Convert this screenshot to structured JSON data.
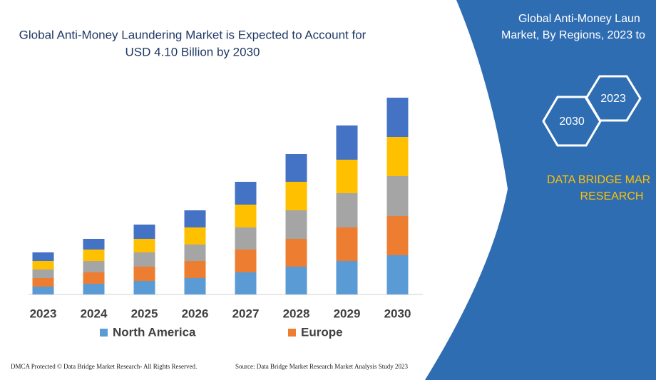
{
  "chart_data": {
    "type": "stacked-bar",
    "title": [
      "Global Anti-Money Laundering Market is Expected to Account for",
      "USD 4.10 Billion by 2030"
    ],
    "categories": [
      "2023",
      "2024",
      "2025",
      "2026",
      "2027",
      "2028",
      "2029",
      "2030"
    ],
    "series": [
      {
        "name": "North America",
        "color": "#5b9bd5",
        "values": [
          11,
          15,
          19,
          23,
          31,
          39,
          47,
          55
        ]
      },
      {
        "name": "Europe",
        "color": "#ed7d31",
        "values": [
          12,
          16,
          20,
          24,
          32,
          39,
          47,
          55
        ]
      },
      {
        "color": "#a5a5a5",
        "values": [
          12,
          16,
          20,
          23,
          31,
          40,
          48,
          56
        ]
      },
      {
        "color": "#ffc000",
        "values": [
          12,
          16,
          19,
          24,
          32,
          40,
          47,
          55
        ]
      },
      {
        "color": "#4472c4",
        "values": [
          12,
          15,
          20,
          24,
          32,
          39,
          48,
          55
        ]
      }
    ]
  },
  "panel": {
    "title": [
      "Global Anti-Money Laun",
      "Market, By Regions, 2023 to"
    ],
    "hexagons": [
      "2030",
      "2023"
    ],
    "brand": [
      "DATA BRIDGE MAR",
      "RESEARCH"
    ]
  },
  "footer": {
    "left": "DMCA Protected © Data Bridge Market Research-  All Rights Reserved.",
    "right": "Source: Data Bridge Market Research  Market Analysis Study 2023"
  }
}
